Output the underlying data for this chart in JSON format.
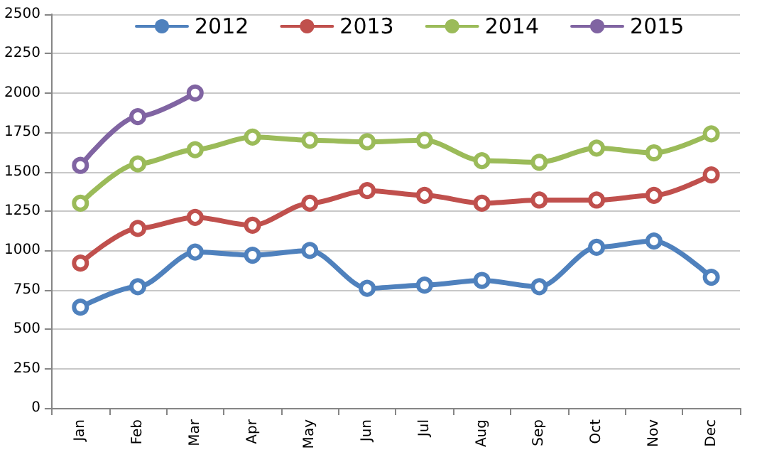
{
  "chart_data": {
    "type": "line",
    "categories": [
      "Jan",
      "Feb",
      "Mar",
      "Apr",
      "May",
      "Jun",
      "Jul",
      "Aug",
      "Sep",
      "Oct",
      "Nov",
      "Dec"
    ],
    "series": [
      {
        "name": "2012",
        "color": "#4f81bd",
        "values": [
          640,
          770,
          990,
          970,
          1000,
          760,
          780,
          810,
          770,
          1020,
          1060,
          830
        ]
      },
      {
        "name": "2013",
        "color": "#c0504d",
        "values": [
          920,
          1140,
          1210,
          1160,
          1300,
          1380,
          1350,
          1300,
          1320,
          1320,
          1350,
          1480
        ]
      },
      {
        "name": "2014",
        "color": "#9bbb59",
        "values": [
          1300,
          1550,
          1640,
          1720,
          1700,
          1690,
          1700,
          1570,
          1560,
          1650,
          1620,
          1740
        ]
      },
      {
        "name": "2015",
        "color": "#8064a2",
        "values": [
          1540,
          1850,
          2000,
          null,
          null,
          null,
          null,
          null,
          null,
          null,
          null,
          null
        ]
      }
    ],
    "ylim": [
      0,
      2500
    ],
    "yticks": [
      0,
      250,
      500,
      750,
      1000,
      1250,
      1500,
      1750,
      2000,
      2250,
      2500
    ],
    "grid": "y",
    "legend": "top",
    "marker": "circle",
    "line_style": "solid"
  }
}
